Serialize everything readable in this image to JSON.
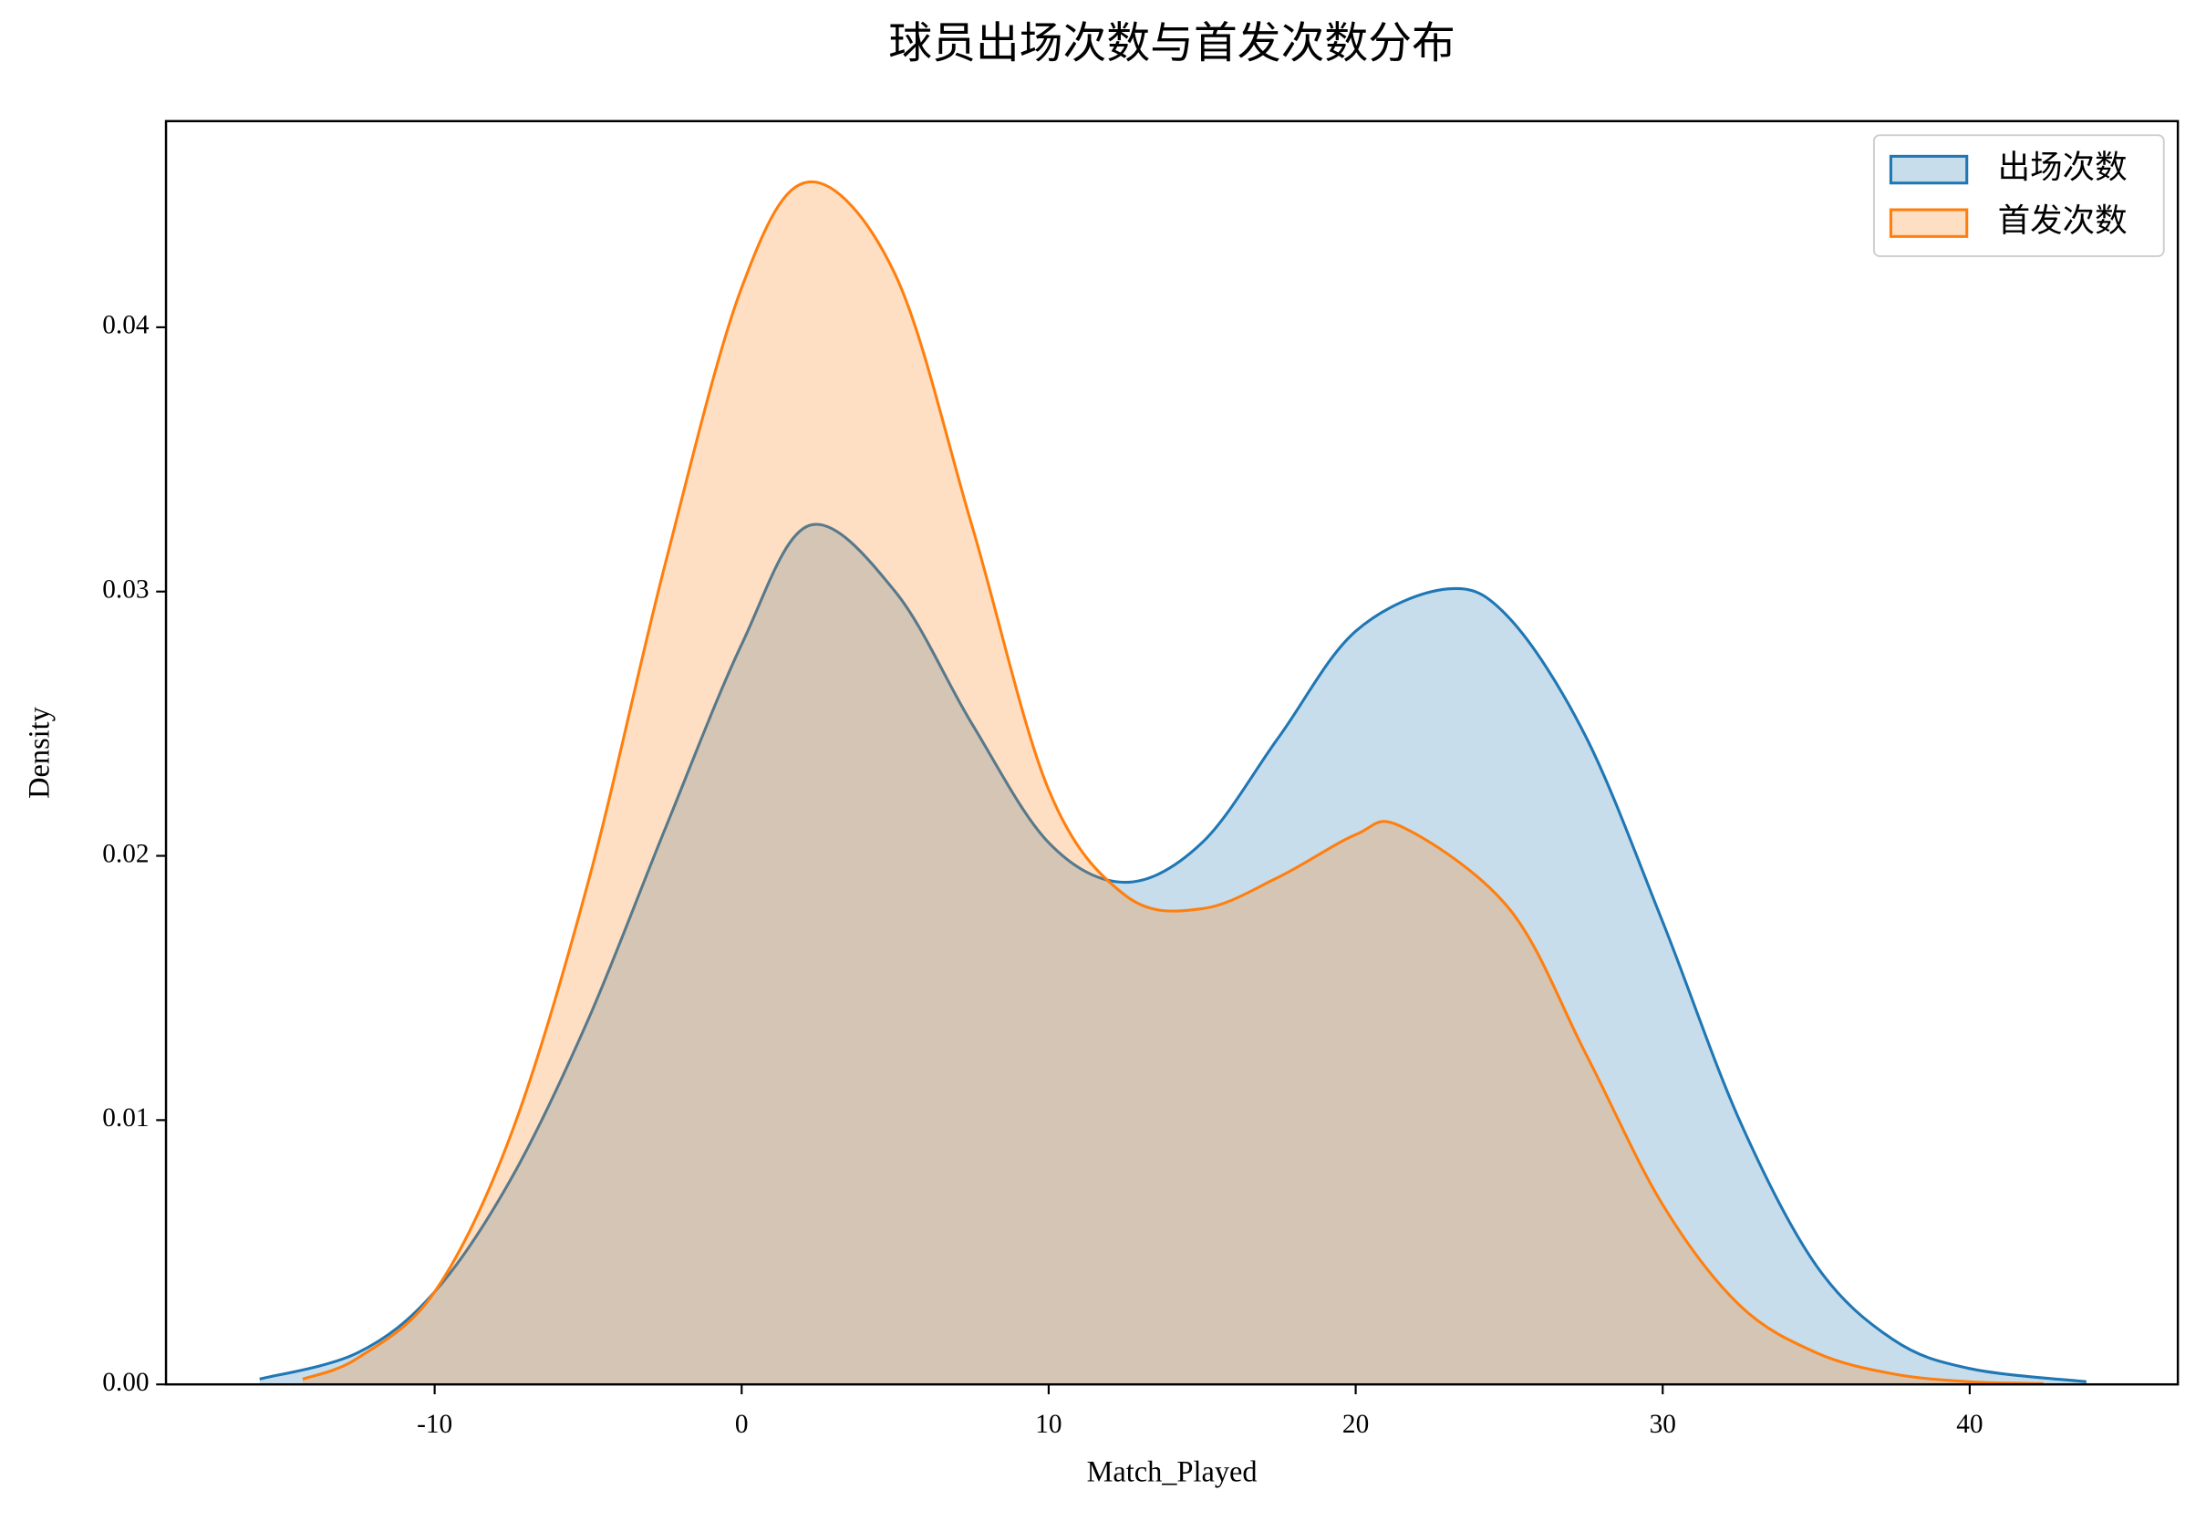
{
  "chart_data": {
    "type": "area",
    "title": "球员出场次数与首发次数分布",
    "x_label": "Match_Played",
    "y_label": "Density",
    "xlim": [
      -18.75,
      46.78
    ],
    "xticks": [
      -10,
      0,
      10,
      20,
      30,
      40
    ],
    "ylim": [
      0,
      0.0478
    ],
    "yticks": [
      {
        "value": 0,
        "label": "0.00"
      },
      0.01,
      0.02,
      0.03,
      0.04
    ],
    "legend": "upper right",
    "series": [
      {
        "name": "出场次数",
        "color": "#1f77b4",
        "x": [
          -15.7,
          -12.5,
          -10,
          -7.5,
          -5,
          -2.5,
          0,
          2.2,
          5,
          7.5,
          10,
          12.5,
          15,
          17.5,
          20,
          23,
          25,
          27.5,
          30,
          32.5,
          35,
          37.5,
          40,
          43.8
        ],
        "values": [
          0.0002,
          0.0012,
          0.0035,
          0.0078,
          0.0138,
          0.021,
          0.028,
          0.0325,
          0.03,
          0.025,
          0.0205,
          0.019,
          0.0205,
          0.0245,
          0.0285,
          0.0301,
          0.029,
          0.0245,
          0.0175,
          0.01,
          0.0045,
          0.0017,
          0.0006,
          0.0001
        ]
      },
      {
        "name": "首发次数",
        "color": "#ff7f0e",
        "x": [
          -14.3,
          -12.5,
          -10,
          -7.5,
          -5,
          -2.5,
          0,
          2.2,
          5,
          7.5,
          10,
          12.5,
          15,
          17.5,
          20,
          21.5,
          25,
          27.5,
          30,
          32.5,
          35,
          37.5,
          40,
          42.4
        ],
        "values": [
          0.0002,
          0.001,
          0.0035,
          0.0095,
          0.019,
          0.031,
          0.0415,
          0.0455,
          0.042,
          0.0325,
          0.0225,
          0.0185,
          0.018,
          0.0192,
          0.0208,
          0.0211,
          0.018,
          0.0125,
          0.0068,
          0.003,
          0.0012,
          0.0004,
          0.0001,
          3e-05
        ]
      }
    ]
  }
}
